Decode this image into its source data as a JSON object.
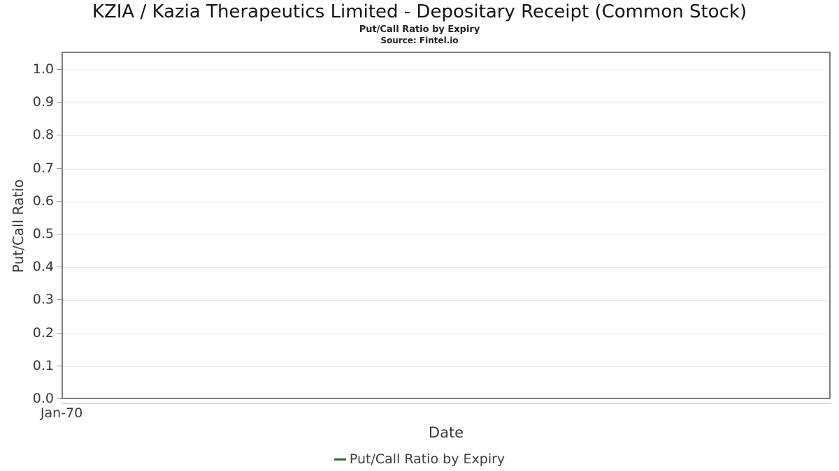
{
  "header": {
    "title": "KZIA / Kazia Therapeutics Limited - Depositary Receipt (Common Stock)",
    "subtitle": "Put/Call Ratio by Expiry",
    "source": "Source: Fintel.io"
  },
  "legend": {
    "marker_color": "#2e6b34",
    "label": "Put/Call Ratio by Expiry"
  },
  "colors": {
    "plot_border": "#7f7f7f",
    "gridline": "#e5e5e5",
    "tick_mark": "#9a9a9a",
    "axis_line": "#cccccc",
    "text": "#3a3a3a",
    "series_green": "#2e6b34"
  },
  "chart_data": {
    "type": "line",
    "title": "KZIA / Kazia Therapeutics Limited - Depositary Receipt (Common Stock)",
    "subtitle": "Put/Call Ratio by Expiry",
    "source": "Source: Fintel.io",
    "xlabel": "Date",
    "ylabel": "Put/Call Ratio",
    "xticklabels": [
      "Jan-70"
    ],
    "yticklabels": [
      "0.0",
      "0.1",
      "0.2",
      "0.3",
      "0.4",
      "0.5",
      "0.6",
      "0.7",
      "0.8",
      "0.9",
      "1.0"
    ],
    "ylim": [
      0,
      1.055
    ],
    "grid": true,
    "legend_position": "bottom-center",
    "series": [
      {
        "name": "Put/Call Ratio by Expiry",
        "color": "#2e6b34",
        "x": [],
        "values": []
      }
    ]
  }
}
